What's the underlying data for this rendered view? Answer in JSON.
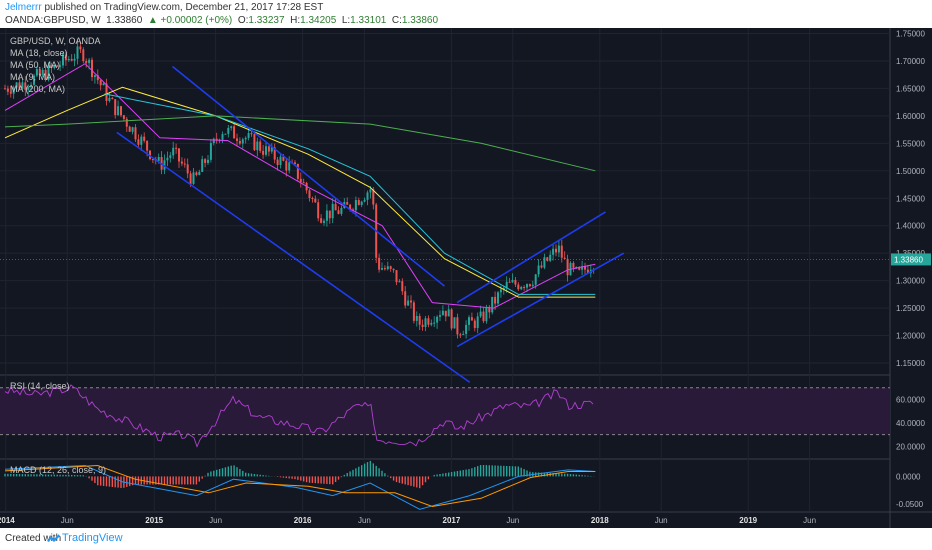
{
  "header": {
    "author": "Jelmerrr",
    "published_text": " published on TradingView.com, December 21, 2017 17:28 EST",
    "symbol": "OANDA:GBPUSD, W",
    "last": "1.33860",
    "change": "▲ +0.00002 (+0%)",
    "o_label": "O:",
    "o": "1.33237",
    "h_label": "H:",
    "h": "1.34205",
    "l_label": "L:",
    "l": "1.33101",
    "c_label": "C:",
    "c": "1.33860"
  },
  "legend": {
    "title": "GBP/USD, W, OANDA",
    "ma18": "MA (18, close)",
    "ma50": "MA (50, MA)",
    "ma9": "MA (9, MA)",
    "ma200": "MA (200, MA)",
    "rsi": "RSI (14, close)",
    "macd": "MACD (12, 26, close, 9)"
  },
  "footer": {
    "created_with": "Created with",
    "brand": "TradingView"
  },
  "colors": {
    "bg": "#131722",
    "candle_up": "#26a69a",
    "candle_down": "#ef5350",
    "ma18": "#e040fb",
    "ma50": "#ffeb3b",
    "ma9": "#26c6da",
    "ma200": "#4caf50",
    "trend": "#1e3cf0",
    "rsi": "#b040d0",
    "macd": "#2196f3",
    "signal": "#ff9800"
  },
  "chart_data": {
    "type": "candlestick",
    "x_ticks": [
      "2014",
      "Jun",
      "2015",
      "Jun",
      "2016",
      "Jun",
      "2017",
      "Jun",
      "2018",
      "Jun",
      "2019",
      "Jun"
    ],
    "price_axis": {
      "ticks": [
        "1.75000",
        "1.70000",
        "1.65000",
        "1.60000",
        "1.55000",
        "1.50000",
        "1.45000",
        "1.40000",
        "1.35000",
        "1.30000",
        "1.25000",
        "1.20000",
        "1.15000"
      ],
      "ylim": [
        1.13,
        1.76
      ],
      "last_price_label": "1.33860",
      "last_price": 1.3386
    },
    "price_path": [
      [
        "2013-12-30",
        1.65
      ],
      [
        "2014-02-15",
        1.66
      ],
      [
        "2014-04-15",
        1.68
      ],
      [
        "2014-06-15",
        1.71
      ],
      [
        "2014-07-10",
        1.715
      ],
      [
        "2014-09-15",
        1.625
      ],
      [
        "2014-11-15",
        1.57
      ],
      [
        "2015-01-15",
        1.51
      ],
      [
        "2015-02-15",
        1.535
      ],
      [
        "2015-04-10",
        1.48
      ],
      [
        "2015-06-15",
        1.575
      ],
      [
        "2015-08-15",
        1.56
      ],
      [
        "2015-10-15",
        1.53
      ],
      [
        "2015-12-15",
        1.5
      ],
      [
        "2016-02-15",
        1.42
      ],
      [
        "2016-04-15",
        1.43
      ],
      [
        "2016-06-20",
        1.47
      ],
      [
        "2016-07-01",
        1.33
      ],
      [
        "2016-08-15",
        1.31
      ],
      [
        "2016-10-10",
        1.22
      ],
      [
        "2016-12-15",
        1.25
      ],
      [
        "2017-01-15",
        1.21
      ],
      [
        "2017-03-15",
        1.23
      ],
      [
        "2017-05-15",
        1.29
      ],
      [
        "2017-07-15",
        1.3
      ],
      [
        "2017-09-20",
        1.36
      ],
      [
        "2017-10-15",
        1.32
      ],
      [
        "2017-11-10",
        1.31
      ],
      [
        "2017-12-21",
        1.3386
      ]
    ],
    "series": [
      {
        "name": "MA (18, close)",
        "points": [
          [
            "2013-12-30",
            1.61
          ],
          [
            "2014-07-15",
            1.695
          ],
          [
            "2015-01-15",
            1.56
          ],
          [
            "2015-07-01",
            1.555
          ],
          [
            "2016-01-15",
            1.47
          ],
          [
            "2016-07-15",
            1.4
          ],
          [
            "2016-11-15",
            1.26
          ],
          [
            "2017-04-15",
            1.25
          ],
          [
            "2017-10-15",
            1.32
          ],
          [
            "2017-12-21",
            1.33
          ]
        ]
      },
      {
        "name": "MA (50, MA)",
        "points": [
          [
            "2013-12-30",
            1.56
          ],
          [
            "2014-06-01",
            1.61
          ],
          [
            "2014-10-15",
            1.652
          ],
          [
            "2015-06-01",
            1.6
          ],
          [
            "2016-01-15",
            1.53
          ],
          [
            "2016-06-15",
            1.47
          ],
          [
            "2016-12-15",
            1.34
          ],
          [
            "2017-06-15",
            1.27
          ],
          [
            "2017-12-21",
            1.27
          ]
        ]
      },
      {
        "name": "MA (9, MA)",
        "points": [
          [
            "2014-09-01",
            1.64
          ],
          [
            "2015-06-01",
            1.6
          ],
          [
            "2016-01-15",
            1.54
          ],
          [
            "2016-06-15",
            1.49
          ],
          [
            "2016-12-15",
            1.35
          ],
          [
            "2017-06-15",
            1.275
          ],
          [
            "2017-12-21",
            1.275
          ]
        ]
      },
      {
        "name": "MA (200, MA)",
        "points": [
          [
            "2013-12-30",
            1.58
          ],
          [
            "2014-06-01",
            1.585
          ],
          [
            "2015-06-01",
            1.6
          ],
          [
            "2016-06-15",
            1.585
          ],
          [
            "2017-03-15",
            1.55
          ],
          [
            "2017-12-21",
            1.5
          ]
        ]
      }
    ],
    "trendlines": [
      {
        "from": [
          "2014-10-01",
          1.57
        ],
        "to": [
          "2017-02-15",
          1.115
        ]
      },
      {
        "from": [
          "2015-02-15",
          1.69
        ],
        "to": [
          "2016-12-15",
          1.29
        ]
      },
      {
        "from": [
          "2017-01-15",
          1.26
        ],
        "to": [
          "2018-01-15",
          1.425
        ]
      },
      {
        "from": [
          "2017-01-15",
          1.18
        ],
        "to": [
          "2018-03-01",
          1.35
        ]
      }
    ],
    "rsi": {
      "name": "RSI (14, close)",
      "ticks": [
        "60.0000",
        "40.0000",
        "20.0000"
      ],
      "ylim": [
        10,
        80
      ],
      "band": [
        30,
        70
      ],
      "points": [
        [
          "2013-12-30",
          68
        ],
        [
          "2014-03-15",
          64
        ],
        [
          "2014-06-15",
          70
        ],
        [
          "2014-08-15",
          52
        ],
        [
          "2014-11-15",
          38
        ],
        [
          "2015-01-15",
          28
        ],
        [
          "2015-03-15",
          30
        ],
        [
          "2015-04-15",
          22
        ],
        [
          "2015-07-15",
          60
        ],
        [
          "2015-09-15",
          45
        ],
        [
          "2015-12-15",
          38
        ],
        [
          "2016-02-15",
          32
        ],
        [
          "2016-05-15",
          55
        ],
        [
          "2016-06-20",
          52
        ],
        [
          "2016-07-01",
          26
        ],
        [
          "2016-10-10",
          24
        ],
        [
          "2016-12-15",
          42
        ],
        [
          "2017-01-15",
          35
        ],
        [
          "2017-05-15",
          55
        ],
        [
          "2017-07-15",
          54
        ],
        [
          "2017-09-20",
          66
        ],
        [
          "2017-10-15",
          55
        ],
        [
          "2017-12-21",
          57
        ]
      ]
    },
    "macd": {
      "name": "MACD (12, 26, close, 9)",
      "ticks": [
        "0.0000",
        "-0.0500"
      ],
      "ylim": [
        -0.065,
        0.03
      ],
      "macd_points": [
        [
          "2013-12-30",
          0.013
        ],
        [
          "2014-07-15",
          0.02
        ],
        [
          "2014-10-15",
          -0.01
        ],
        [
          "2015-04-15",
          -0.035
        ],
        [
          "2015-07-15",
          -0.005
        ],
        [
          "2015-12-15",
          -0.02
        ],
        [
          "2016-03-15",
          -0.035
        ],
        [
          "2016-06-15",
          -0.012
        ],
        [
          "2016-10-15",
          -0.06
        ],
        [
          "2017-02-15",
          -0.035
        ],
        [
          "2017-06-15",
          0.0
        ],
        [
          "2017-10-15",
          0.012
        ],
        [
          "2017-12-21",
          0.009
        ]
      ],
      "signal_points": [
        [
          "2013-12-30",
          0.01
        ],
        [
          "2014-08-15",
          0.02
        ],
        [
          "2014-11-15",
          -0.005
        ],
        [
          "2015-05-15",
          -0.03
        ],
        [
          "2015-08-15",
          -0.012
        ],
        [
          "2016-01-15",
          -0.018
        ],
        [
          "2016-04-15",
          -0.03
        ],
        [
          "2016-08-15",
          -0.03
        ],
        [
          "2016-11-15",
          -0.055
        ],
        [
          "2017-03-15",
          -0.04
        ],
        [
          "2017-07-15",
          -0.002
        ],
        [
          "2017-10-15",
          0.009
        ],
        [
          "2017-12-21",
          0.009
        ]
      ]
    }
  }
}
